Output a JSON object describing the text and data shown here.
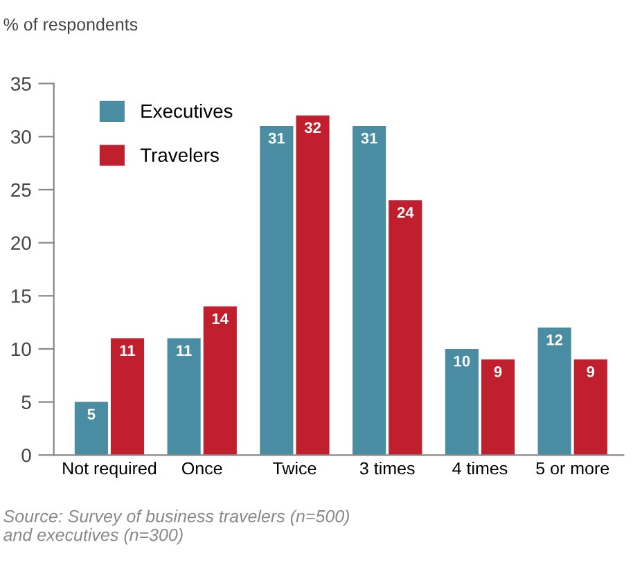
{
  "chart_data": {
    "type": "bar",
    "ylabel": "% of respondents",
    "categories": [
      "Not required",
      "Once",
      "Twice",
      "3 times",
      "4 times",
      "5 or more"
    ],
    "series": [
      {
        "name": "Executives",
        "color": "#4a8da3",
        "values": [
          5,
          11,
          31,
          31,
          10,
          12
        ]
      },
      {
        "name": "Travelers",
        "color": "#c01f2e",
        "values": [
          11,
          14,
          32,
          24,
          9,
          9
        ]
      }
    ],
    "ylim": [
      0,
      35
    ],
    "yticks": [
      0,
      5,
      10,
      15,
      20,
      25,
      30,
      35
    ],
    "grid": false,
    "legend": "top left",
    "data_labels": true,
    "annotations": [
      "Source: Survey of business travelers (n=500)\nand executives (n=300)"
    ]
  }
}
